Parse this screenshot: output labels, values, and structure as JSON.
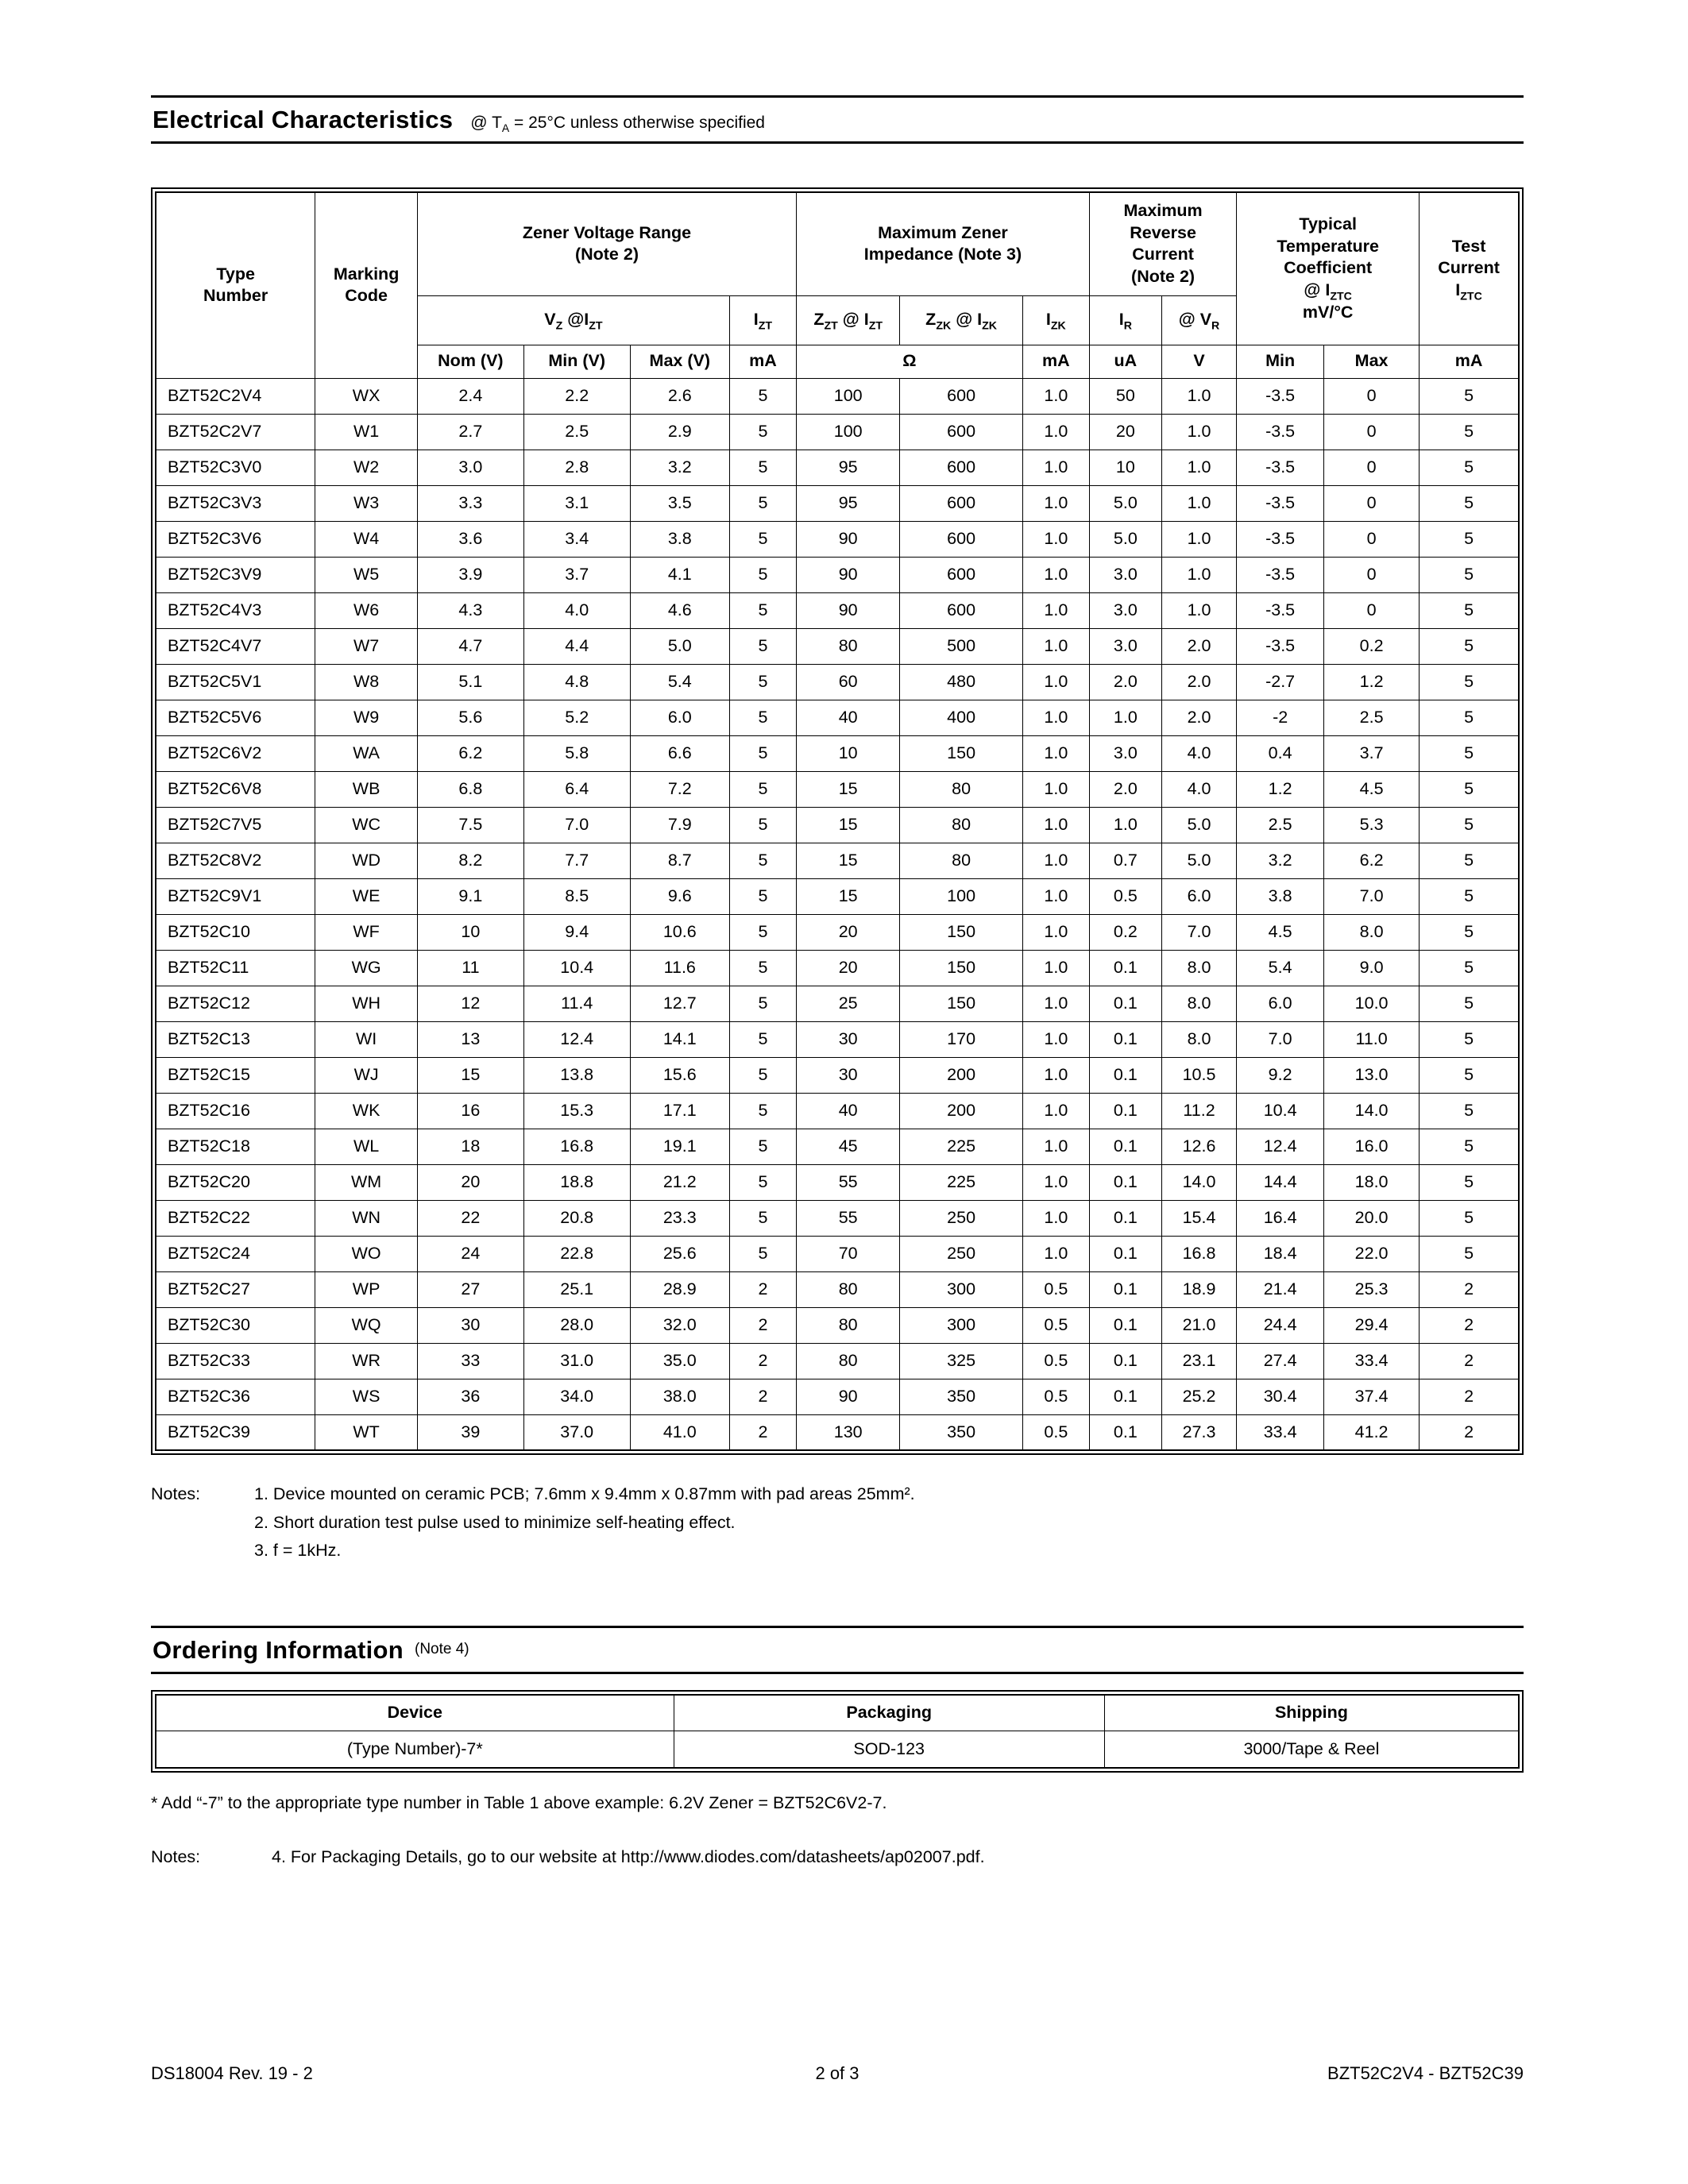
{
  "electrical": {
    "title": "Electrical Characteristics",
    "subtitle": "@ T_{A} = 25°C unless otherwise specified"
  },
  "table": {
    "headers": {
      "type_number": "Type\nNumber",
      "marking_code": "Marking\nCode",
      "zener_voltage_range": "Zener Voltage Range\n(Note 2)",
      "max_zener_impedance": "Maximum Zener\nImpedance (Note 3)",
      "max_reverse_current": "Maximum\nReverse\nCurrent\n(Note 2)",
      "temp_coefficient": "Typical\nTemperature\nCoefficient\n@ I_{ZTC}\nmV/°C",
      "test_current": "Test\nCurrent\nI_{ZTC}",
      "vz_izt": "V_{Z} @I_{ZT}",
      "izt": "I_{ZT}",
      "zzt_izt": "Z_{ZT} @ I_{ZT}",
      "zzk_izk": "Z_{ZK} @ I_{ZK}",
      "izk": "I_{ZK}",
      "ir": "I_{R}",
      "vr": "@ V_{R}",
      "units": {
        "nom": "Nom (V)",
        "min": "Min (V)",
        "max": "Max (V)",
        "izt_ma": "mA",
        "ohm": "Ω",
        "izk_ma": "mA",
        "ir_ua": "uA",
        "vr_v": "V",
        "tc_min": "Min",
        "tc_max": "Max",
        "test_ma": "mA"
      }
    },
    "rows": [
      [
        "BZT52C2V4",
        "WX",
        "2.4",
        "2.2",
        "2.6",
        "5",
        "100",
        "600",
        "1.0",
        "50",
        "1.0",
        "-3.5",
        "0",
        "5"
      ],
      [
        "BZT52C2V7",
        "W1",
        "2.7",
        "2.5",
        "2.9",
        "5",
        "100",
        "600",
        "1.0",
        "20",
        "1.0",
        "-3.5",
        "0",
        "5"
      ],
      [
        "BZT52C3V0",
        "W2",
        "3.0",
        "2.8",
        "3.2",
        "5",
        "95",
        "600",
        "1.0",
        "10",
        "1.0",
        "-3.5",
        "0",
        "5"
      ],
      [
        "BZT52C3V3",
        "W3",
        "3.3",
        "3.1",
        "3.5",
        "5",
        "95",
        "600",
        "1.0",
        "5.0",
        "1.0",
        "-3.5",
        "0",
        "5"
      ],
      [
        "BZT52C3V6",
        "W4",
        "3.6",
        "3.4",
        "3.8",
        "5",
        "90",
        "600",
        "1.0",
        "5.0",
        "1.0",
        "-3.5",
        "0",
        "5"
      ],
      [
        "BZT52C3V9",
        "W5",
        "3.9",
        "3.7",
        "4.1",
        "5",
        "90",
        "600",
        "1.0",
        "3.0",
        "1.0",
        "-3.5",
        "0",
        "5"
      ],
      [
        "BZT52C4V3",
        "W6",
        "4.3",
        "4.0",
        "4.6",
        "5",
        "90",
        "600",
        "1.0",
        "3.0",
        "1.0",
        "-3.5",
        "0",
        "5"
      ],
      [
        "BZT52C4V7",
        "W7",
        "4.7",
        "4.4",
        "5.0",
        "5",
        "80",
        "500",
        "1.0",
        "3.0",
        "2.0",
        "-3.5",
        "0.2",
        "5"
      ],
      [
        "BZT52C5V1",
        "W8",
        "5.1",
        "4.8",
        "5.4",
        "5",
        "60",
        "480",
        "1.0",
        "2.0",
        "2.0",
        "-2.7",
        "1.2",
        "5"
      ],
      [
        "BZT52C5V6",
        "W9",
        "5.6",
        "5.2",
        "6.0",
        "5",
        "40",
        "400",
        "1.0",
        "1.0",
        "2.0",
        "-2",
        "2.5",
        "5"
      ],
      [
        "BZT52C6V2",
        "WA",
        "6.2",
        "5.8",
        "6.6",
        "5",
        "10",
        "150",
        "1.0",
        "3.0",
        "4.0",
        "0.4",
        "3.7",
        "5"
      ],
      [
        "BZT52C6V8",
        "WB",
        "6.8",
        "6.4",
        "7.2",
        "5",
        "15",
        "80",
        "1.0",
        "2.0",
        "4.0",
        "1.2",
        "4.5",
        "5"
      ],
      [
        "BZT52C7V5",
        "WC",
        "7.5",
        "7.0",
        "7.9",
        "5",
        "15",
        "80",
        "1.0",
        "1.0",
        "5.0",
        "2.5",
        "5.3",
        "5"
      ],
      [
        "BZT52C8V2",
        "WD",
        "8.2",
        "7.7",
        "8.7",
        "5",
        "15",
        "80",
        "1.0",
        "0.7",
        "5.0",
        "3.2",
        "6.2",
        "5"
      ],
      [
        "BZT52C9V1",
        "WE",
        "9.1",
        "8.5",
        "9.6",
        "5",
        "15",
        "100",
        "1.0",
        "0.5",
        "6.0",
        "3.8",
        "7.0",
        "5"
      ],
      [
        "BZT52C10",
        "WF",
        "10",
        "9.4",
        "10.6",
        "5",
        "20",
        "150",
        "1.0",
        "0.2",
        "7.0",
        "4.5",
        "8.0",
        "5"
      ],
      [
        "BZT52C11",
        "WG",
        "11",
        "10.4",
        "11.6",
        "5",
        "20",
        "150",
        "1.0",
        "0.1",
        "8.0",
        "5.4",
        "9.0",
        "5"
      ],
      [
        "BZT52C12",
        "WH",
        "12",
        "11.4",
        "12.7",
        "5",
        "25",
        "150",
        "1.0",
        "0.1",
        "8.0",
        "6.0",
        "10.0",
        "5"
      ],
      [
        "BZT52C13",
        "WI",
        "13",
        "12.4",
        "14.1",
        "5",
        "30",
        "170",
        "1.0",
        "0.1",
        "8.0",
        "7.0",
        "11.0",
        "5"
      ],
      [
        "BZT52C15",
        "WJ",
        "15",
        "13.8",
        "15.6",
        "5",
        "30",
        "200",
        "1.0",
        "0.1",
        "10.5",
        "9.2",
        "13.0",
        "5"
      ],
      [
        "BZT52C16",
        "WK",
        "16",
        "15.3",
        "17.1",
        "5",
        "40",
        "200",
        "1.0",
        "0.1",
        "11.2",
        "10.4",
        "14.0",
        "5"
      ],
      [
        "BZT52C18",
        "WL",
        "18",
        "16.8",
        "19.1",
        "5",
        "45",
        "225",
        "1.0",
        "0.1",
        "12.6",
        "12.4",
        "16.0",
        "5"
      ],
      [
        "BZT52C20",
        "WM",
        "20",
        "18.8",
        "21.2",
        "5",
        "55",
        "225",
        "1.0",
        "0.1",
        "14.0",
        "14.4",
        "18.0",
        "5"
      ],
      [
        "BZT52C22",
        "WN",
        "22",
        "20.8",
        "23.3",
        "5",
        "55",
        "250",
        "1.0",
        "0.1",
        "15.4",
        "16.4",
        "20.0",
        "5"
      ],
      [
        "BZT52C24",
        "WO",
        "24",
        "22.8",
        "25.6",
        "5",
        "70",
        "250",
        "1.0",
        "0.1",
        "16.8",
        "18.4",
        "22.0",
        "5"
      ],
      [
        "BZT52C27",
        "WP",
        "27",
        "25.1",
        "28.9",
        "2",
        "80",
        "300",
        "0.5",
        "0.1",
        "18.9",
        "21.4",
        "25.3",
        "2"
      ],
      [
        "BZT52C30",
        "WQ",
        "30",
        "28.0",
        "32.0",
        "2",
        "80",
        "300",
        "0.5",
        "0.1",
        "21.0",
        "24.4",
        "29.4",
        "2"
      ],
      [
        "BZT52C33",
        "WR",
        "33",
        "31.0",
        "35.0",
        "2",
        "80",
        "325",
        "0.5",
        "0.1",
        "23.1",
        "27.4",
        "33.4",
        "2"
      ],
      [
        "BZT52C36",
        "WS",
        "36",
        "34.0",
        "38.0",
        "2",
        "90",
        "350",
        "0.5",
        "0.1",
        "25.2",
        "30.4",
        "37.4",
        "2"
      ],
      [
        "BZT52C39",
        "WT",
        "39",
        "37.0",
        "41.0",
        "2",
        "130",
        "350",
        "0.5",
        "0.1",
        "27.3",
        "33.4",
        "41.2",
        "2"
      ]
    ]
  },
  "notes": {
    "label": "Notes:",
    "items": [
      "1. Device mounted on ceramic PCB; 7.6mm x 9.4mm x 0.87mm with pad areas 25mm².",
      "2. Short duration test pulse used to minimize self-heating effect.",
      "3. f = 1kHz."
    ]
  },
  "ordering": {
    "title": "Ordering Information",
    "note_ref": "(Note 4)",
    "footnote": "* Add “-7” to the appropriate type number in Table 1 above example: 6.2V Zener = BZT52C6V2-7.",
    "note_label": "Notes:",
    "note_text": "4.  For Packaging Details, go to our website at http://www.diodes.com/datasheets/ap02007.pdf."
  },
  "ordering_table": {
    "headers": [
      "Device",
      "Packaging",
      "Shipping"
    ],
    "rows": [
      [
        "(Type Number)-7*",
        "SOD-123",
        "3000/Tape & Reel"
      ]
    ]
  },
  "footer": {
    "left": "DS18004 Rev. 19 - 2",
    "center": "2 of 3",
    "right": "BZT52C2V4 - BZT52C39"
  }
}
